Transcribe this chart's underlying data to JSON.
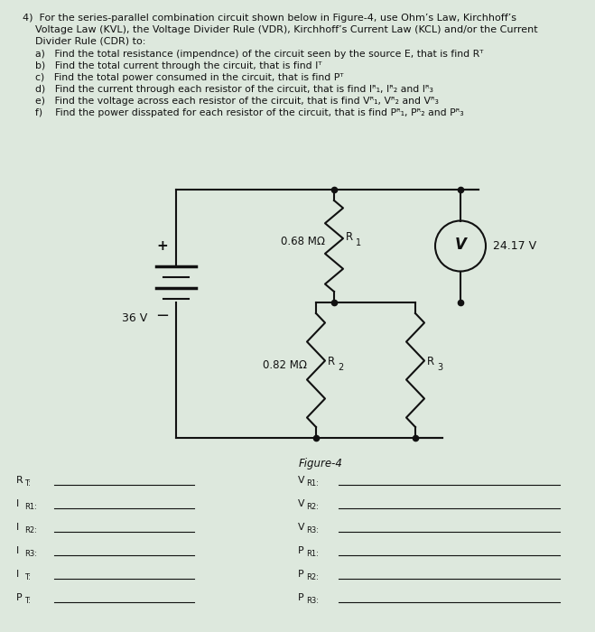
{
  "bg_color": "#dde8dd",
  "title_line1": "4)  For the series-parallel combination circuit shown below in Figure-4, use Ohm’s Law, Kirchhoff’s",
  "title_line2": "    Voltage Law (KVL), the Voltage Divider Rule (VDR), Kirchhoff’s Current Law (KCL) and/or the Current",
  "title_line3": "    Divider Rule (CDR) to:",
  "item_a": "    a)   Find the total resistance (impendnce) of the circuit seen by the source E, that is find R",
  "item_a_sub": "T",
  "item_b": "    b)   Find the total current through the circuit, that is find I",
  "item_b_sub": "T",
  "item_c": "    c)   Find the total power consumed in the circuit, that is find P",
  "item_c_sub": "T",
  "item_d": "    d)   Find the current through each resistor of the circuit, that is find I",
  "item_d_sub": "R1",
  "item_d_2": ", I",
  "item_d_sub2": "R2",
  "item_d_3": " and I",
  "item_d_sub3": "R3",
  "item_e": "    e)   Find the voltage across each resistor of the circuit, that is find V",
  "item_e_sub": "R1",
  "item_e_2": ", V",
  "item_e_sub2": "R2",
  "item_e_3": " and V",
  "item_e_sub3": "R3",
  "item_f": "    f)    Find the power disspated for each resistor of the circuit, that is find P",
  "item_f_sub": "R1",
  "item_f_2": ", P",
  "item_f_sub2": "R2",
  "item_f_3": " and P",
  "item_f_sub3": "R3",
  "source_voltage": "36 V",
  "r1_label": "0.68 MΩ",
  "r1_name": "R",
  "r1_name_sub": "1",
  "r2_label": "0.82 MΩ",
  "r2_name": "R",
  "r2_name_sub": "2",
  "r3_name": "R",
  "r3_name_sub": "3",
  "voltmeter_label": "24.17 V",
  "figure_label": "Figure-4",
  "left_labels": [
    "R",
    "I",
    "I",
    "I",
    "I",
    "P"
  ],
  "left_subs": [
    "T",
    "R1",
    "R2",
    "R3",
    "T",
    "T"
  ],
  "right_labels": [
    "V",
    "V",
    "V",
    "P",
    "P",
    "P"
  ],
  "right_subs": [
    "R1",
    "R2",
    "R3",
    "R1",
    "R2",
    "R3"
  ],
  "text_color": "#111111",
  "circuit_color": "#111111",
  "line_width": 1.5
}
